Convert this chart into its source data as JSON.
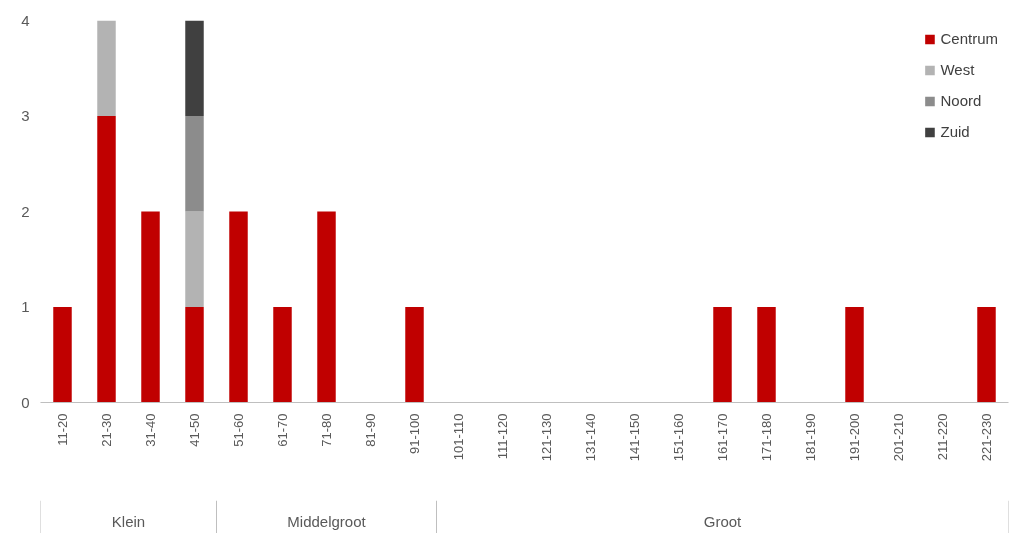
{
  "chart_data": {
    "type": "bar",
    "stacked": true,
    "categories": [
      "11-20",
      "21-30",
      "31-40",
      "41-50",
      "51-60",
      "61-70",
      "71-80",
      "81-90",
      "91-100",
      "101-110",
      "111-120",
      "121-130",
      "131-140",
      "141-150",
      "151-160",
      "161-170",
      "171-180",
      "181-190",
      "191-200",
      "201-210",
      "211-220",
      "221-230"
    ],
    "series": [
      {
        "name": "Centrum",
        "color": "#c00000",
        "values": [
          1,
          3,
          2,
          1,
          2,
          1,
          2,
          0,
          1,
          0,
          0,
          0,
          0,
          0,
          0,
          1,
          1,
          0,
          1,
          0,
          0,
          1
        ]
      },
      {
        "name": "West",
        "color": "#b3b3b3",
        "values": [
          0,
          1,
          0,
          1,
          0,
          0,
          0,
          0,
          0,
          0,
          0,
          0,
          0,
          0,
          0,
          0,
          0,
          0,
          0,
          0,
          0,
          0
        ]
      },
      {
        "name": "Noord",
        "color": "#8c8c8c",
        "values": [
          0,
          0,
          0,
          1,
          0,
          0,
          0,
          0,
          0,
          0,
          0,
          0,
          0,
          0,
          0,
          0,
          0,
          0,
          0,
          0,
          0,
          0
        ]
      },
      {
        "name": "Zuid",
        "color": "#404040",
        "values": [
          0,
          0,
          0,
          1,
          0,
          0,
          0,
          0,
          0,
          0,
          0,
          0,
          0,
          0,
          0,
          0,
          0,
          0,
          0,
          0,
          0,
          0
        ]
      }
    ],
    "ylim": [
      0,
      4
    ],
    "yticks": [
      0,
      1,
      2,
      3,
      4
    ],
    "grid": false,
    "legend": "top right",
    "annotations": [
      "Klein",
      "Middelgroot",
      "Groot"
    ]
  }
}
